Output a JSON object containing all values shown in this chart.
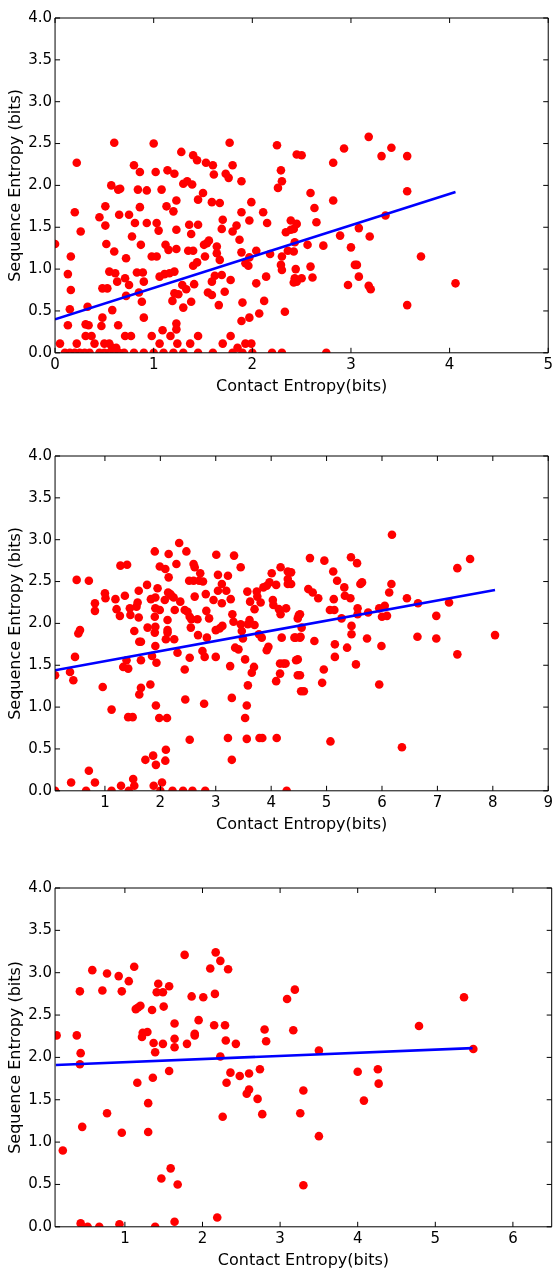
{
  "chart_data": [
    {
      "type": "scatter",
      "xlabel": "Contact Entropy(bits)",
      "ylabel": "Sequence Entropy (bits)",
      "xlim": [
        0,
        5
      ],
      "xticks": [
        0,
        1,
        2,
        3,
        4,
        5
      ],
      "ylim": [
        0,
        4
      ],
      "yticks": [
        {
          "value": 0,
          "label": "0.0"
        },
        {
          "value": 0.5,
          "label": "0.5"
        },
        {
          "value": 1,
          "label": "1.0"
        },
        {
          "value": 1.5,
          "label": "1.5"
        },
        {
          "value": 2,
          "label": "2.0"
        },
        {
          "value": 2.5,
          "label": "2.5"
        },
        {
          "value": 3,
          "label": "3.0"
        },
        {
          "value": 3.5,
          "label": "3.5"
        },
        {
          "value": 4,
          "label": "4.0"
        }
      ],
      "series": [
        {
          "color": "#ff0000",
          "marker": "circle",
          "x": [
            0,
            0.05,
            0.13,
            0.16,
            0.15,
            0.16,
            0.13,
            0.2,
            0.22,
            0.22,
            0.26,
            0.31,
            0.34,
            0.33,
            0.31,
            0.37,
            0.4,
            0.45,
            0.51,
            0.51,
            0.52,
            0.48,
            0.53,
            0.48,
            0.47,
            0.58,
            0.6,
            0.57,
            0.55,
            0.6,
            0.61,
            0.64,
            0.65,
            0.63,
            0.64,
            0.66,
            0.71,
            0.72,
            0.72,
            0.75,
            0.75,
            0.78,
            0.8,
            0.81,
            0.71,
            0.77,
            0.84,
            0.86,
            0.86,
            0.87,
            0.85,
            0.83,
            0.88,
            0.9,
            0.9,
            0.93,
            0.93,
            0.89,
            1,
            1.02,
            0.98,
            1.03,
            1.03,
            1.05,
            1.06,
            1.08,
            0.98,
            1.06,
            1.09,
            1.11,
            1.13,
            1.14,
            1.12,
            1.15,
            1.16,
            1.17,
            1.19,
            1.2,
            1.21,
            1.23,
            1.23,
            1.23,
            1.21,
            1.21,
            1.23,
            1.23,
            1.24,
            1.25,
            1.28,
            1.29,
            1.3,
            1.3,
            1.33,
            1.34,
            1.35,
            1.36,
            1.38,
            1.4,
            1.39,
            1.37,
            1.4,
            1.38,
            1.41,
            1.4,
            1.44,
            1.45,
            1.45,
            1.45,
            1.44,
            1.5,
            1.51,
            1.54,
            1.56,
            1.53,
            1.52,
            1.55,
            1.59,
            1.6,
            1.61,
            1.59,
            1.59,
            1.64,
            1.64,
            1.62,
            1.66,
            1.67,
            1.7,
            1.69,
            1.67,
            1.69,
            1.72,
            1.7,
            1.73,
            1.76,
            1.77,
            1.78,
            1.78,
            1.8,
            1.8,
            1.84,
            1.85,
            1.87,
            1.89,
            1.89,
            1.89,
            1.9,
            1.89,
            1.93,
            1.96,
            1.97,
            1.97,
            1.93,
            1.99,
            1.99,
            2.04,
            2.04,
            1.97,
            2.07,
            2.11,
            2.12,
            2.15,
            2.14,
            2.18,
            2.25,
            2.29,
            2.3,
            2.26,
            2.3,
            2.29,
            2.3,
            2.33,
            2.34,
            2.36,
            2.39,
            2.39,
            2.42,
            2.43,
            2.45,
            2.45,
            2.5,
            2.42,
            2.43,
            2.42,
            2.44,
            2.45,
            2.5,
            2.59,
            2.59,
            2.63,
            2.65,
            2.56,
            2.61,
            2.72,
            2.82,
            2.82,
            2.89,
            2.93,
            2.97,
            3,
            3.04,
            3.06,
            3.08,
            3.08,
            3.18,
            3.19,
            3.18,
            3.2,
            3.31,
            3.41,
            3.35,
            3.57,
            3.57,
            3.57,
            3.71,
            4.06,
            0.1,
            0.15,
            0.2,
            0.25,
            0.3,
            0.35,
            0.45,
            0.5,
            0.55,
            0.6,
            0.65,
            0.7,
            0.8,
            0.9,
            1.0,
            1.1,
            1.2,
            1.3,
            1.45,
            1.6,
            1.8,
            1.9,
            2.0,
            2.2,
            2.3,
            2.75,
            0.5,
            0.55,
            0.58,
            0.62
          ],
          "values": [
            1.3,
            0.11,
            0.94,
            0.75,
            0.52,
            1.15,
            0.33,
            1.68,
            2.27,
            0.11,
            1.45,
            0.34,
            0.33,
            0.55,
            0.2,
            0.2,
            0.11,
            1.62,
            1.75,
            1.52,
            1.3,
            0.77,
            0.77,
            0.42,
            0.32,
            0.51,
            2.51,
            2,
            0.97,
            1.21,
            0.95,
            1.95,
            1.65,
            0.85,
            0.33,
            1.96,
            0.89,
            1.13,
            0.68,
            0.81,
            1.65,
            1.39,
            2.24,
            1.55,
            0.2,
            0.2,
            1.95,
            2.16,
            1.74,
            1.29,
            0.72,
            0.96,
            0.61,
            0.85,
            0.42,
            1.94,
            1.55,
            0.96,
            2.5,
            2.16,
            1.15,
            1.15,
            1.55,
            1.46,
            0.91,
            1.95,
            0.2,
            0.11,
            0.27,
            0.94,
            1.75,
            2.18,
            1.29,
            1.23,
            0.95,
            0.2,
            0.62,
            1.69,
            2.14,
            1.82,
            1.47,
            1.24,
            0.97,
            0.71,
            0.35,
            0.28,
            0.11,
            0.7,
            2.4,
            0.81,
            0.54,
            2.02,
            0.76,
            2.05,
            1.22,
            1.53,
            1.42,
            1.22,
            2.01,
            0.11,
            1.04,
            0.61,
            0.82,
            2.36,
            2.3,
            1.83,
            1.53,
            0.2,
            1.08,
            1.91,
            1.29,
            1.31,
            1.34,
            2.27,
            1.15,
            0.72,
            0.69,
            2.24,
            2.13,
            1.8,
            0.85,
            1.27,
            1.19,
            0.92,
            0.57,
            1.79,
            1.59,
            1.48,
            1.11,
            0.93,
            0.73,
            0.11,
            2.14,
            2.09,
            2.51,
            0.87,
            0.2,
            2.24,
            1.45,
            1.52,
            0.06,
            1.35,
            2.05,
            1.68,
            1.2,
            0.6,
            0.38,
            1.07,
            1.04,
            1.14,
            1.58,
            0.11,
            1.8,
            0.11,
            0.83,
            1.22,
            0.42,
            0.47,
            1.68,
            0.62,
            1.55,
            0.91,
            1.18,
            2.48,
            2.18,
            2.05,
            1.97,
            1.15,
            1.05,
            0.99,
            0.49,
            1.44,
            1.22,
            1.47,
            1.58,
            0.84,
            0.89,
            2.37,
            1.54,
            2.36,
            1.48,
            1.32,
            1.21,
            1,
            0.85,
            0.89,
            1.03,
            1.91,
            1.73,
            1.56,
            1.29,
            0.9,
            1.28,
            2.27,
            1.82,
            1.4,
            2.44,
            0.81,
            1.26,
            1.05,
            1.05,
            0.91,
            1.49,
            2.58,
            1.39,
            0.8,
            0.76,
            2.35,
            2.45,
            1.64,
            2.35,
            1.93,
            0.57,
            1.15,
            0.83,
            0,
            0,
            0,
            0,
            0,
            0,
            0,
            0,
            0,
            0,
            0,
            0,
            0,
            0,
            0,
            0,
            0,
            0,
            0,
            0,
            0,
            0,
            0,
            0,
            0,
            0,
            0.11,
            0.11,
            0.06,
            0.06
          ]
        },
        {
          "type": "line",
          "color": "#0000ff",
          "x": [
            0,
            4.06
          ],
          "values": [
            0.4,
            1.92
          ]
        }
      ]
    },
    {
      "type": "scatter",
      "xlabel": "Contact Entropy(bits)",
      "ylabel": "Sequence Entropy (bits)",
      "xlim": [
        0.1,
        9
      ],
      "xticks": [
        1,
        2,
        3,
        4,
        5,
        6,
        7,
        8,
        9
      ],
      "ylim": [
        0,
        4
      ],
      "yticks": [
        {
          "value": 0,
          "label": "0.0"
        },
        {
          "value": 0.5,
          "label": "0.5"
        },
        {
          "value": 1,
          "label": "1.0"
        },
        {
          "value": 1.5,
          "label": "1.5"
        },
        {
          "value": 2,
          "label": "2.0"
        },
        {
          "value": 2.5,
          "label": "2.5"
        },
        {
          "value": 3,
          "label": "3.0"
        },
        {
          "value": 3.5,
          "label": "3.5"
        },
        {
          "value": 4,
          "label": "4.0"
        }
      ],
      "series": [
        {
          "color": "#ff0000",
          "marker": "circle",
          "x": [
            0.1,
            0.1,
            0.37,
            0.43,
            0.46,
            0.39,
            0.49,
            0.52,
            0.55,
            0.66,
            0.71,
            0.71,
            0.82,
            0.82,
            0.82,
            0.96,
            1,
            1.01,
            1.12,
            1.12,
            1.19,
            1.21,
            1.27,
            1.28,
            1.33,
            1.29,
            1.36,
            1.4,
            1.39,
            1.42,
            1.42,
            1.5,
            1.45,
            1.46,
            1.51,
            1.53,
            1.43,
            1.53,
            1.57,
            1.61,
            1.59,
            1.61,
            1.62,
            1.65,
            1.65,
            1.65,
            1.62,
            1.73,
            1.76,
            1.77,
            1.82,
            1.83,
            1.85,
            1.87,
            1.88,
            1.9,
            1.91,
            1.91,
            1.9,
            1.91,
            1.9,
            1.91,
            1.93,
            1.92,
            1.92,
            1.95,
            1.99,
            1.99,
            1.98,
            2.03,
            2,
            2.08,
            2.09,
            2.12,
            2.09,
            2.1,
            2.13,
            2.13,
            2.13,
            2.1,
            2.14,
            2.15,
            2.15,
            2.18,
            2.2,
            2.24,
            2.22,
            2.26,
            2.25,
            2.29,
            2.31,
            2.34,
            2.36,
            2.41,
            2.44,
            2.44,
            2.45,
            2.47,
            2.49,
            2.52,
            2.53,
            2.53,
            2.55,
            2.53,
            2.56,
            2.58,
            2.6,
            2.6,
            2.62,
            2.62,
            2.67,
            2.68,
            2.7,
            2.72,
            2.76,
            2.77,
            2.8,
            2.79,
            2.81,
            2.82,
            2.83,
            2.84,
            2.88,
            2.96,
            3,
            3,
            3.01,
            3.04,
            3.04,
            3.07,
            3.11,
            3.11,
            3.12,
            3.19,
            3.22,
            3.22,
            3.26,
            3.27,
            3.29,
            3.29,
            3.3,
            3.32,
            3.33,
            3.35,
            3.41,
            3.45,
            3.45,
            3.47,
            3.49,
            3.53,
            3.53,
            3.56,
            3.57,
            3.56,
            3.58,
            3.58,
            3.61,
            3.62,
            3.65,
            3.69,
            3.7,
            3.7,
            3.74,
            3.75,
            3.78,
            3.79,
            3.81,
            3.84,
            3.83,
            3.86,
            3.92,
            3.92,
            3.95,
            3.97,
            4.01,
            4.03,
            4.04,
            4.09,
            4.09,
            4.1,
            4.14,
            4.16,
            4.16,
            4.17,
            4.17,
            4.19,
            4.22,
            4.26,
            4.27,
            4.28,
            4.3,
            4.3,
            4.3,
            4.45,
            4.48,
            4.48,
            4.5,
            4.52,
            4.44,
            4.54,
            4.36,
            4.36,
            4.52,
            4.55,
            4.42,
            4.53,
            4.48,
            4.52,
            4.59,
            4.7,
            4.67,
            4.75,
            4.85,
            4.78,
            4.96,
            4.95,
            4.92,
            5.07,
            5.12,
            5.19,
            5.13,
            5.06,
            5.14,
            5.15,
            5.15,
            5.27,
            5.32,
            5.33,
            5.37,
            5.43,
            5.44,
            5.45,
            5.45,
            5.55,
            5.56,
            5.56,
            5.53,
            5.61,
            5.64,
            5.75,
            5.73,
            5.95,
            5.95,
            5.99,
            6,
            6.05,
            6.09,
            6.13,
            6.17,
            6.18,
            6.36,
            6.45,
            6.65,
            6.64,
            6.98,
            6.98,
            7.21,
            7.36,
            7.36,
            7.59,
            8.04
          ],
          "values": [
            0,
            1.38,
            1.42,
            1.32,
            1.6,
            0.1,
            2.52,
            1.88,
            1.92,
            0,
            2.51,
            0.24,
            0.1,
            2.15,
            2.24,
            1.24,
            2.36,
            2.3,
            0.97,
            0,
            2.29,
            2.17,
            2.09,
            2.69,
            1.48,
            0.06,
            2.33,
            2.7,
            1.56,
            1.46,
            0.88,
            0.88,
            2.18,
            2.1,
            0.14,
            0.06,
            0,
            1.91,
            2.2,
            2.39,
            2.25,
            2.07,
            1.78,
            1.78,
            1.56,
            1.23,
            1.15,
            0.37,
            2.46,
            1.95,
            1.27,
            2.29,
            1.61,
            0.42,
            0.06,
            2.86,
            2.31,
            2.18,
            2.08,
            1.96,
            1.89,
            1.73,
            1.53,
            1.02,
            0.31,
            2.42,
            2.16,
            2.68,
            0.87,
            0.1,
            0,
            2.28,
            2.65,
            0.87,
            0.36,
            0.49,
            2.04,
            1.92,
            1.89,
            1.81,
            2.37,
            2.55,
            2.83,
            2.35,
            2.33,
            2.31,
            0,
            2.16,
            1.81,
            2.71,
            1.65,
            2.96,
            2.26,
            0,
            2.16,
            1.45,
            1.09,
            2.86,
            2.14,
            2.51,
            0.61,
            1.59,
            1.95,
            2.08,
            2.05,
            0,
            2.51,
            2.71,
            2.67,
            2.32,
            2.05,
            1.86,
            2.51,
            2.6,
            1.67,
            2.5,
            1.6,
            1.04,
            0,
            2.35,
            2.15,
            1.83,
            2.06,
            2.28,
            1.6,
            1.92,
            2.82,
            2.58,
            2.39,
            1.94,
            2.47,
            2.24,
            1.97,
            2.39,
            2.57,
            0.63,
            1.49,
            2.29,
            1.11,
            0.37,
            2.11,
            2.02,
            2.81,
            1.71,
            1.69,
            2.67,
            1.99,
            1.91,
            1.82,
            1.57,
            0.87,
            1.02,
            2.38,
            0.62,
            1.99,
            1.26,
            2.04,
            2.26,
            1.41,
            1.48,
            1.98,
            2.17,
            2.38,
            2.32,
            1.87,
            0.63,
            2.25,
            0.63,
            1.83,
            2.43,
            2.45,
            1.68,
            1.72,
            2.49,
            2.6,
            2.28,
            2.22,
            2.46,
            1.31,
            0.63,
            2.17,
            1.4,
            1.52,
            2.67,
            2.11,
            1.83,
            1.52,
            1.52,
            2.18,
            0,
            2.53,
            2.62,
            2.47,
            1.56,
            1.38,
            2.06,
            2.1,
            1.83,
            1.83,
            1.19,
            2.61,
            2.47,
            2.11,
            1.95,
            1.83,
            1.84,
            1.57,
            1.38,
            1.19,
            2.78,
            2.41,
            2.37,
            2.3,
            1.79,
            2.75,
            1.45,
            1.29,
            0.59,
            2.62,
            2.51,
            2.29,
            2.16,
            2.16,
            1.75,
            1.6,
            2.06,
            2.43,
            2.33,
            1.71,
            2.3,
            2.79,
            1.97,
            1.87,
            2.72,
            2.18,
            2.11,
            1.51,
            2.47,
            2.49,
            2.13,
            1.82,
            1.27,
            2.18,
            1.73,
            2.08,
            2.21,
            2.09,
            2.37,
            2.47,
            3.06,
            0.52,
            2.3,
            2.24,
            1.84,
            2.09,
            1.82,
            2.25,
            2.66,
            1.63,
            2.77,
            1.86
          ]
        },
        {
          "type": "line",
          "color": "#0000ff",
          "x": [
            0.1,
            8.04
          ],
          "values": [
            1.44,
            2.4
          ]
        }
      ]
    },
    {
      "type": "scatter",
      "xlabel": "Contact Entropy(bits)",
      "ylabel": "Sequence Entropy (bits)",
      "xlim": [
        0.1,
        6.5
      ],
      "xticks": [
        1,
        2,
        3,
        4,
        5,
        6
      ],
      "ylim": [
        0,
        4
      ],
      "yticks": [
        {
          "value": 0,
          "label": "0.0"
        },
        {
          "value": 0.5,
          "label": "0.5"
        },
        {
          "value": 1,
          "label": "1.0"
        },
        {
          "value": 1.5,
          "label": "1.5"
        },
        {
          "value": 2,
          "label": "2.0"
        },
        {
          "value": 2.5,
          "label": "2.5"
        },
        {
          "value": 3,
          "label": "3.0"
        },
        {
          "value": 3.5,
          "label": "3.5"
        },
        {
          "value": 4,
          "label": "4.0"
        }
      ],
      "series": [
        {
          "color": "#ff0000",
          "marker": "circle",
          "x": [
            0.12,
            0.2,
            0.38,
            0.42,
            0.43,
            0.42,
            0.45,
            0.43,
            0.52,
            0.58,
            0.67,
            0.71,
            0.77,
            0.77,
            0.92,
            0.96,
            0.96,
            0.93,
            1.05,
            1.12,
            1.14,
            1.17,
            1.2,
            1.16,
            1.22,
            1.23,
            1.29,
            1.3,
            1.3,
            1.35,
            1.37,
            1.36,
            1.39,
            1.39,
            1.41,
            1.43,
            1.49,
            1.5,
            1.49,
            1.57,
            1.57,
            1.47,
            1.59,
            1.64,
            1.64,
            1.64,
            1.64,
            1.68,
            1.77,
            1.8,
            1.86,
            1.9,
            1.9,
            1.95,
            2.01,
            2.1,
            2.15,
            2.16,
            2.17,
            2.19,
            2.23,
            2.23,
            2.26,
            2.29,
            2.3,
            2.31,
            2.33,
            2.36,
            2.43,
            2.48,
            2.57,
            2.6,
            2.6,
            2.71,
            2.74,
            2.77,
            2.8,
            2.82,
            3.09,
            3.19,
            3.17,
            3.26,
            3.3,
            3.3,
            3.5,
            3.5,
            4,
            4.08,
            4.26,
            4.27,
            4.79,
            5.37,
            5.49
          ],
          "values": [
            2.26,
            0.9,
            2.26,
            2.78,
            2.05,
            1.92,
            1.18,
            0.04,
            0,
            3.03,
            0,
            2.79,
            2.99,
            1.34,
            2.96,
            2.78,
            1.11,
            0.03,
            2.9,
            3.07,
            2.57,
            2.59,
            2.61,
            1.7,
            2.24,
            2.29,
            2.3,
            1.46,
            1.12,
            2.56,
            2.17,
            1.76,
            2.06,
            0,
            2.77,
            2.87,
            2.77,
            2.6,
            2.16,
            2.84,
            1.84,
            0.57,
            0.69,
            2.4,
            2.22,
            2.12,
            0.06,
            0.5,
            3.21,
            2.16,
            2.72,
            2.28,
            2.26,
            2.44,
            2.71,
            3.05,
            2.38,
            2.75,
            3.24,
            0.11,
            3.14,
            2.01,
            1.3,
            2.38,
            2.2,
            1.7,
            3.04,
            1.82,
            2.16,
            1.78,
            1.57,
            1.62,
            1.81,
            1.51,
            1.86,
            1.33,
            2.33,
            2.19,
            2.69,
            2.8,
            2.32,
            1.34,
            0.49,
            1.61,
            2.08,
            1.07,
            1.83,
            1.49,
            1.86,
            1.69,
            2.37,
            2.71,
            2.1
          ]
        },
        {
          "type": "line",
          "color": "#0000ff",
          "x": [
            0.11,
            5.48
          ],
          "values": [
            1.91,
            2.11
          ]
        }
      ]
    }
  ]
}
